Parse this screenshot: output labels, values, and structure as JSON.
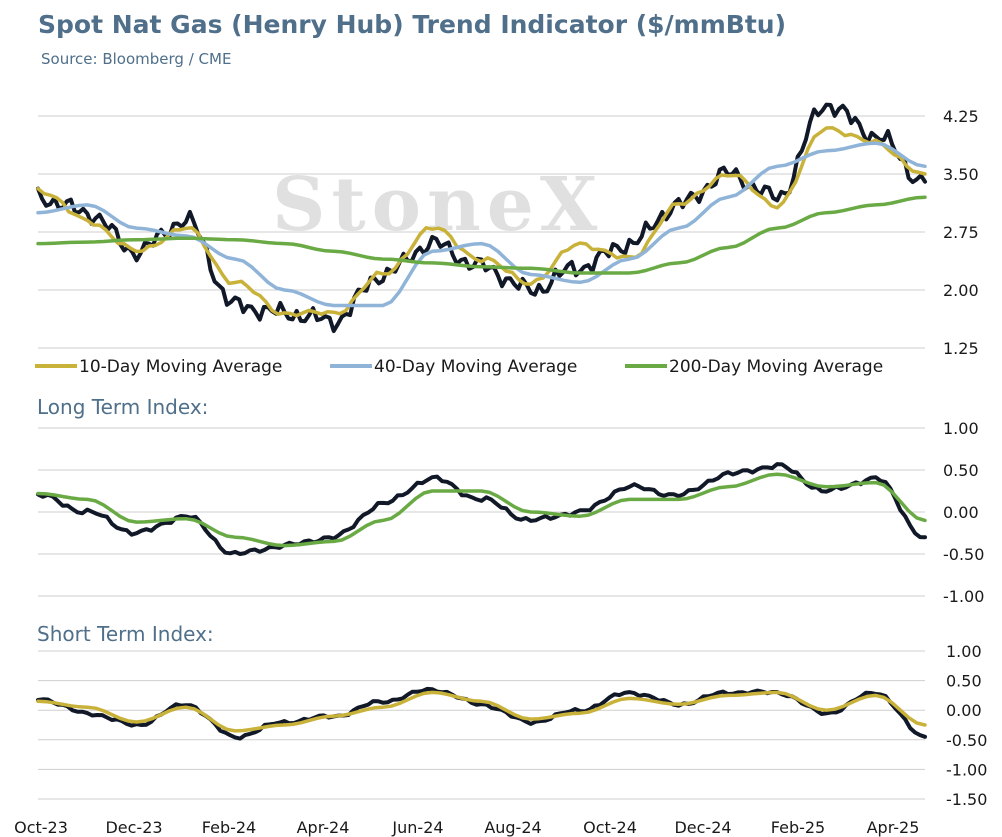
{
  "header": {
    "title": "Spot Nat Gas (Henry Hub) Trend Indicator ($/mmBtu)",
    "source": "Source: Bloomberg / CME",
    "watermark": "StoneX"
  },
  "colors": {
    "price": "#111827",
    "ma10": "#c9b23a",
    "ma40": "#8fb4d8",
    "ma200": "#6aaa45",
    "title": "#4f6f8a",
    "grid": "#cfcfcf"
  },
  "x_axis": {
    "labels": [
      "Oct-23",
      "Dec-23",
      "Feb-24",
      "Apr-24",
      "Jun-24",
      "Aug-24",
      "Oct-24",
      "Dec-24",
      "Feb-25",
      "Apr-25"
    ]
  },
  "chart_data": [
    {
      "type": "line",
      "title": "Spot Nat Gas (Henry Hub) Trend Indicator ($/mmBtu)",
      "ylim": [
        1.25,
        4.25
      ],
      "yticks": [
        "4.25",
        "3.50",
        "2.75",
        "2.00",
        "1.25"
      ],
      "legend": {
        "placement": "bottom"
      },
      "x": [
        "Oct-23",
        "Nov-23",
        "Dec-23",
        "Jan-24",
        "Feb-24",
        "Mar-24",
        "Apr-24",
        "May-24",
        "Jun-24",
        "Jul-24",
        "Aug-24",
        "Sep-24",
        "Oct-24",
        "Nov-24",
        "Dec-24",
        "Jan-25",
        "Feb-25",
        "Mar-25",
        "Apr-25"
      ],
      "series": [
        {
          "name": "",
          "role": "price",
          "values": [
            3.2,
            3.0,
            2.5,
            2.9,
            1.8,
            1.7,
            1.6,
            2.2,
            2.6,
            2.3,
            2.0,
            2.3,
            2.6,
            3.1,
            3.5,
            3.2,
            4.4,
            4.0,
            3.4
          ]
        },
        {
          "name": "10-Day Moving Average",
          "role": "ma10",
          "values": [
            3.3,
            2.9,
            2.5,
            2.8,
            2.1,
            1.7,
            1.7,
            2.2,
            2.8,
            2.4,
            2.1,
            2.6,
            2.4,
            3.1,
            3.5,
            3.1,
            4.1,
            3.9,
            3.5
          ]
        },
        {
          "name": "40-Day Moving Average",
          "role": "ma40",
          "values": [
            3.0,
            3.1,
            2.8,
            2.7,
            2.4,
            2.0,
            1.8,
            1.8,
            2.5,
            2.6,
            2.2,
            2.1,
            2.4,
            2.8,
            3.2,
            3.6,
            3.8,
            3.9,
            3.6
          ]
        },
        {
          "name": "200-Day Moving Average",
          "role": "ma200",
          "values": [
            2.6,
            2.62,
            2.65,
            2.67,
            2.65,
            2.6,
            2.5,
            2.4,
            2.35,
            2.3,
            2.28,
            2.22,
            2.22,
            2.35,
            2.55,
            2.8,
            3.0,
            3.1,
            3.2
          ]
        }
      ]
    },
    {
      "type": "line",
      "title": "Long Term Index:",
      "ylim": [
        -1.0,
        1.0
      ],
      "yticks": [
        "1.00",
        "0.50",
        "0.00",
        "-0.50",
        "-1.00"
      ],
      "x": [
        "Oct-23",
        "Nov-23",
        "Dec-23",
        "Jan-24",
        "Feb-24",
        "Mar-24",
        "Apr-24",
        "May-24",
        "Jun-24",
        "Jul-24",
        "Aug-24",
        "Sep-24",
        "Oct-24",
        "Nov-24",
        "Dec-24",
        "Jan-25",
        "Feb-25",
        "Mar-25",
        "Apr-25"
      ],
      "series": [
        {
          "name": "",
          "role": "index",
          "values": [
            0.2,
            0.0,
            -0.25,
            -0.05,
            -0.5,
            -0.4,
            -0.3,
            0.1,
            0.4,
            0.15,
            -0.1,
            0.0,
            0.3,
            0.2,
            0.45,
            0.55,
            0.25,
            0.4,
            -0.3
          ]
        },
        {
          "name": "",
          "role": "index-smooth",
          "values": [
            0.22,
            0.15,
            -0.12,
            -0.08,
            -0.3,
            -0.4,
            -0.35,
            -0.1,
            0.25,
            0.25,
            0.0,
            -0.05,
            0.15,
            0.15,
            0.3,
            0.45,
            0.3,
            0.35,
            -0.1
          ]
        }
      ]
    },
    {
      "type": "line",
      "title": "Short Term Index:",
      "ylim": [
        -1.5,
        1.0
      ],
      "yticks": [
        "1.00",
        "0.50",
        "0.00",
        "-0.50",
        "-1.00",
        "-1.50"
      ],
      "x": [
        "Oct-23",
        "Nov-23",
        "Dec-23",
        "Jan-24",
        "Feb-24",
        "Mar-24",
        "Apr-24",
        "May-24",
        "Jun-24",
        "Jul-24",
        "Aug-24",
        "Sep-24",
        "Oct-24",
        "Nov-24",
        "Dec-24",
        "Jan-25",
        "Feb-25",
        "Mar-25",
        "Apr-25"
      ],
      "series": [
        {
          "name": "",
          "role": "index",
          "values": [
            0.2,
            -0.05,
            -0.25,
            0.1,
            -0.45,
            -0.2,
            -0.1,
            0.15,
            0.35,
            0.1,
            -0.2,
            0.0,
            0.3,
            0.1,
            0.3,
            0.3,
            -0.05,
            0.3,
            -0.45
          ]
        },
        {
          "name": "",
          "role": "index-smooth",
          "values": [
            0.15,
            0.05,
            -0.2,
            0.05,
            -0.35,
            -0.25,
            -0.1,
            0.05,
            0.3,
            0.15,
            -0.15,
            -0.05,
            0.2,
            0.1,
            0.25,
            0.3,
            0.0,
            0.25,
            -0.25
          ]
        }
      ]
    }
  ]
}
